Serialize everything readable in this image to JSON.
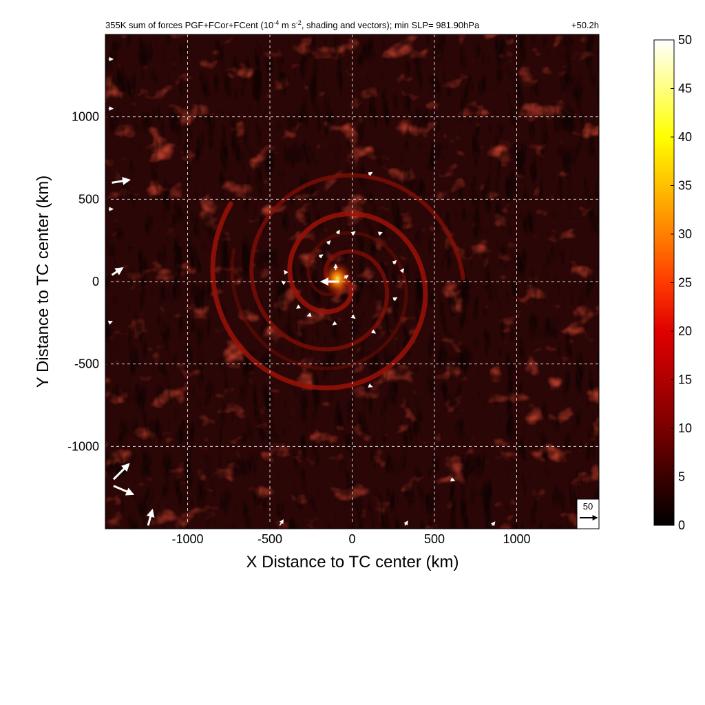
{
  "chart_data": {
    "type": "heatmap",
    "title": "355K sum of forces PGF+FCor+FCent (10",
    "title_sup1": "-4",
    "title_mid": " m s",
    "title_sup2": "-2",
    "title_tail": ", shading and vectors); min SLP= 981.90hPa",
    "time_label": "+50.2h",
    "xlabel": "X Distance to TC center (km)",
    "ylabel": "Y Distance to TC center (km)",
    "xlim": [
      -1500,
      1500
    ],
    "ylim": [
      -1500,
      1500
    ],
    "x_ticks": [
      -1000,
      -500,
      0,
      500,
      1000
    ],
    "y_ticks": [
      -1000,
      -500,
      0,
      500,
      1000
    ],
    "x_tick_labels": [
      "-1000",
      "-500",
      "0",
      "500",
      "1000"
    ],
    "y_tick_labels": [
      "-1000",
      "-500",
      "0",
      "500",
      "1000"
    ],
    "grid": true,
    "colorbar": {
      "range": [
        0,
        50
      ],
      "ticks": [
        0,
        5,
        10,
        15,
        20,
        25,
        30,
        35,
        40,
        45,
        50
      ],
      "tick_labels": [
        "0",
        "5",
        "10",
        "15",
        "20",
        "25",
        "30",
        "35",
        "40",
        "45",
        "50"
      ],
      "colors": [
        "#000000",
        "#3a0000",
        "#7a0000",
        "#b00000",
        "#e00000",
        "#ff3a00",
        "#ff8000",
        "#ffbf00",
        "#ffff00",
        "#ffff80",
        "#ffffff"
      ]
    },
    "reference_vector": {
      "label": "50",
      "magnitude": 50
    },
    "field_colors": {
      "background": "#2a0606",
      "spiral_band": "#9a1208",
      "core": "#ffd21a"
    },
    "center_max_approx": 28,
    "typical_value_approx": 4,
    "vectors": [
      {
        "x": -80,
        "y": 0,
        "u": -25,
        "v": 0
      },
      {
        "x": -100,
        "y": 70,
        "u": 0,
        "v": 8
      },
      {
        "x": -50,
        "y": 20,
        "u": 6,
        "v": 4
      },
      {
        "x": -200,
        "y": 150,
        "u": 5,
        "v": 3
      },
      {
        "x": -150,
        "y": 230,
        "u": 4,
        "v": 4
      },
      {
        "x": -90,
        "y": 290,
        "u": 3,
        "v": 5
      },
      {
        "x": 0,
        "y": 290,
        "u": 4,
        "v": 3
      },
      {
        "x": 160,
        "y": 290,
        "u": 5,
        "v": 2
      },
      {
        "x": 250,
        "y": 110,
        "u": 4,
        "v": 4
      },
      {
        "x": 300,
        "y": 60,
        "u": 3,
        "v": 4
      },
      {
        "x": 250,
        "y": -110,
        "u": 5,
        "v": 3
      },
      {
        "x": 120,
        "y": -300,
        "u": 5,
        "v": -3
      },
      {
        "x": 0,
        "y": -210,
        "u": 4,
        "v": -3
      },
      {
        "x": -100,
        "y": -250,
        "u": -4,
        "v": -3
      },
      {
        "x": -250,
        "y": -200,
        "u": -5,
        "v": -2
      },
      {
        "x": -320,
        "y": -150,
        "u": -4,
        "v": -3
      },
      {
        "x": -410,
        "y": -10,
        "u": -4,
        "v": 3
      },
      {
        "x": -400,
        "y": 50,
        "u": -3,
        "v": 4
      },
      {
        "x": 100,
        "y": 650,
        "u": 5,
        "v": 3
      },
      {
        "x": 100,
        "y": -630,
        "u": 5,
        "v": -2
      },
      {
        "x": 600,
        "y": -1200,
        "u": 5,
        "v": -2
      },
      {
        "x": -1460,
        "y": 600,
        "u": 25,
        "v": 4
      },
      {
        "x": -1460,
        "y": 40,
        "u": 15,
        "v": 10
      },
      {
        "x": -1450,
        "y": -1200,
        "u": 22,
        "v": 22
      },
      {
        "x": -1450,
        "y": -1240,
        "u": 28,
        "v": -12
      },
      {
        "x": -1240,
        "y": -1480,
        "u": 6,
        "v": 22
      },
      {
        "x": -440,
        "y": -1480,
        "u": 5,
        "v": 8
      },
      {
        "x": 320,
        "y": -1480,
        "u": 4,
        "v": 6
      },
      {
        "x": 850,
        "y": -1480,
        "u": 4,
        "v": 5
      },
      {
        "x": -1480,
        "y": 1350,
        "u": 6,
        "v": 0
      },
      {
        "x": -1480,
        "y": 1050,
        "u": 6,
        "v": 0
      },
      {
        "x": -1480,
        "y": 440,
        "u": 6,
        "v": 0
      },
      {
        "x": -1480,
        "y": -250,
        "u": 5,
        "v": 2
      }
    ]
  }
}
